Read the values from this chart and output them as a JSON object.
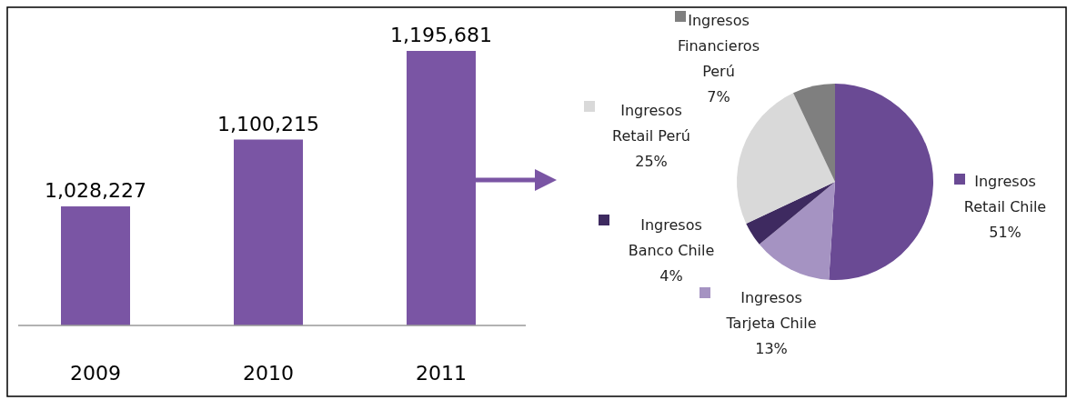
{
  "chart_data": [
    {
      "type": "bar",
      "categories": [
        "2009",
        "2010",
        "2011"
      ],
      "values": [
        1028227,
        1100215,
        1195681
      ],
      "color": "#7a55a4",
      "ylim": [
        900000,
        1195681
      ],
      "tick_labels": "x",
      "data_labels": true,
      "value_labels": [
        "1,028,227",
        "1,100,215",
        "1,195,681"
      ]
    },
    {
      "type": "pie",
      "categories": [
        "Ingresos Retail Chile",
        "Ingresos Tarjeta Chile",
        "Ingresos Banco Chile",
        "Ingresos Retail Perú",
        "Ingresos Financieros Perú"
      ],
      "values": [
        51,
        13,
        4,
        25,
        7
      ],
      "colors": [
        "#6a4a94",
        "#a593c2",
        "#3e2a60",
        "#d9d9d9",
        "#7f7f7f"
      ],
      "data_labels": true,
      "value_labels": [
        "51%",
        "13%",
        "4%",
        "25%",
        "7%"
      ],
      "legend": "top left"
    }
  ]
}
